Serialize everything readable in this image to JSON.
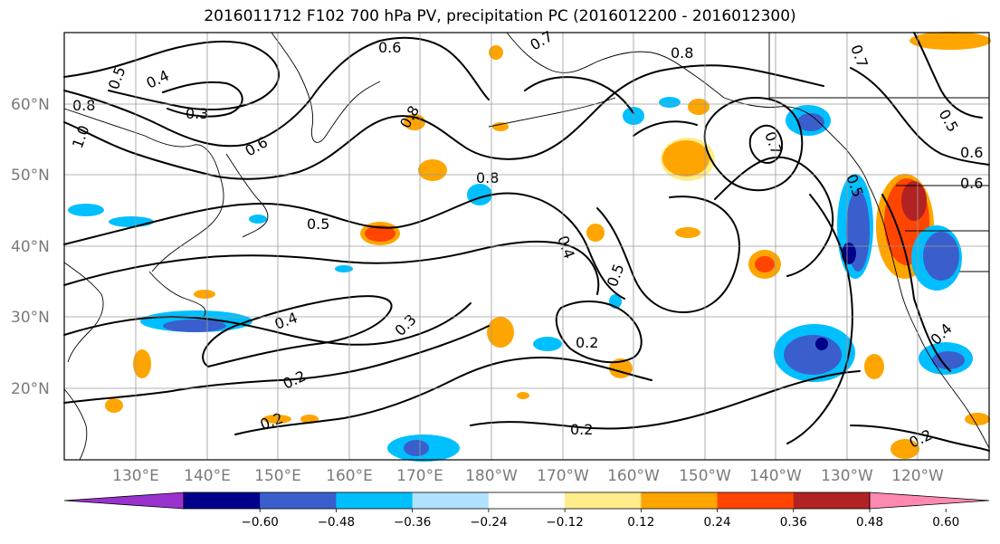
{
  "title": "2016011712 F102 700 hPa PV, precipitation PC (2016012200 - 2016012300)",
  "map": {
    "lat_labels": [
      "60°N",
      "50°N",
      "40°N",
      "30°N",
      "20°N"
    ],
    "lon_labels": [
      "130°E",
      "140°E",
      "150°E",
      "160°E",
      "170°E",
      "180°W",
      "170°W",
      "160°W",
      "150°W",
      "140°W",
      "130°W",
      "120°W"
    ],
    "contour_labels": [
      "0.6",
      "0.7",
      "0.8",
      "0.4",
      "0.5",
      "0.3",
      "0.8",
      "0.6",
      "1.0",
      "0.8",
      "0.8",
      "0.5",
      "0.4",
      "0.5",
      "0.4",
      "0.3",
      "0.2",
      "0.2",
      "0.2",
      "0.2",
      "0.6",
      "0.6",
      "0.2",
      "0.7",
      "0.5",
      "0.7",
      "0.5",
      "0.4"
    ]
  },
  "colorbar": {
    "ticks": [
      "−0.60",
      "−0.48",
      "−0.36",
      "−0.24",
      "−0.12",
      "0.12",
      "0.24",
      "0.36",
      "0.48",
      "0.60"
    ],
    "colors": [
      "#9a32cd",
      "#00008b",
      "#3a5fcd",
      "#00bfff",
      "#b0e2ff",
      "#ffffff",
      "#ffec8b",
      "#ffa500",
      "#ff4500",
      "#b22222",
      "#ff89b0"
    ]
  },
  "shading_colors": {
    "neg_strong": "#3a5fcd",
    "neg_mid": "#00bfff",
    "neg_weak": "#b0e2ff",
    "neg_darkest": "#00008b",
    "pos_weak": "#ffec8b",
    "pos_mid": "#ffa500",
    "pos_strong": "#ff4500",
    "pos_darkest": "#b22222"
  }
}
